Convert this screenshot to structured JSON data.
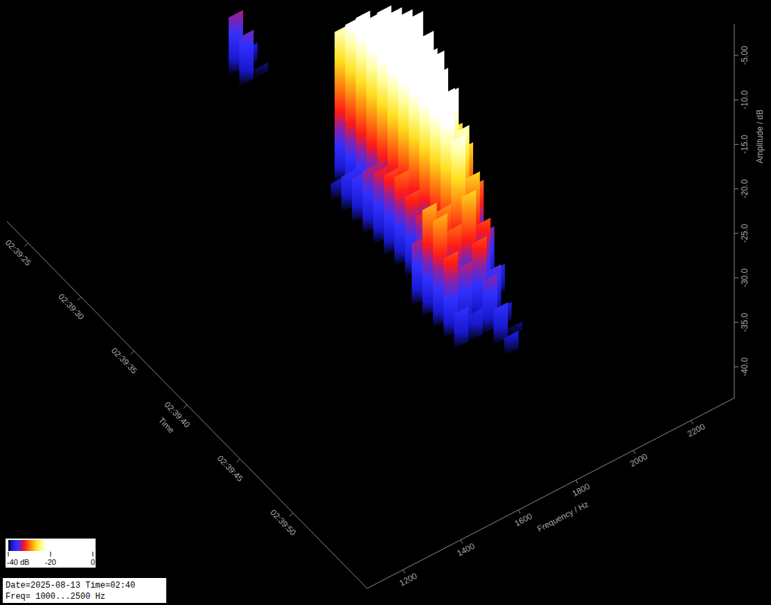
{
  "chart_data": {
    "type": "waterfall",
    "x_label": "Time",
    "y_label": "Frequency / Hz",
    "z_label": "Amplitude / dB",
    "x": [
      "02:39:23",
      "02:39:24",
      "02:39:33",
      "02:39:34",
      "02:39:35",
      "02:39:36",
      "02:39:37",
      "02:39:38",
      "02:39:39",
      "02:39:40",
      "02:39:41",
      "02:39:42",
      "02:39:43",
      "02:39:44",
      "02:39:45",
      "02:39:46",
      "02:39:47",
      "02:39:48",
      "02:39:49"
    ],
    "y": [
      1770,
      1820,
      1870,
      1920,
      1970
    ],
    "values": [
      [
        null,
        null,
        -33.5,
        -38,
        null
      ],
      [
        null,
        null,
        -34.5,
        -39,
        null
      ],
      [
        null,
        null,
        -23,
        -28,
        -35
      ],
      [
        null,
        -38,
        -21,
        -26,
        -33
      ],
      [
        null,
        -36,
        -19,
        -24,
        -31
      ],
      [
        null,
        -35,
        -18,
        -23,
        -30
      ],
      [
        null,
        -33,
        -16,
        -21,
        -28
      ],
      [
        null,
        -32,
        -15,
        -20,
        -27
      ],
      [
        null,
        -31,
        -14,
        -19,
        -26
      ],
      [
        null,
        -30,
        -13,
        -18,
        -25
      ],
      [
        null,
        -31,
        -14,
        -19,
        -26
      ],
      [
        null,
        -32,
        -15,
        -20,
        -27
      ],
      [
        -33,
        -31,
        -18,
        -23,
        -30
      ],
      [
        -28,
        -29,
        -22,
        -27,
        -34
      ],
      [
        -28,
        -30,
        -27,
        -31,
        -37
      ],
      [
        -31,
        -33,
        -31,
        -35,
        null
      ],
      [
        -36,
        -37,
        -34,
        -38,
        null
      ],
      [
        null,
        null,
        -36,
        -39,
        null
      ],
      [
        null,
        null,
        -38,
        null,
        null
      ]
    ],
    "xlim": [
      "02:39:23",
      "02:39:57"
    ],
    "xticks": [
      "02:39:25",
      "02:39:30",
      "02:39:35",
      "02:39:40",
      "02:39:45",
      "02:39:50"
    ],
    "ylim": [
      1075,
      2350
    ],
    "yticks": [
      1200,
      1400,
      1600,
      1800,
      2000,
      2200
    ],
    "zlim": [
      -43.5,
      -1.5
    ],
    "zticks": [
      {
        "value": -5,
        "label": "-5.00"
      },
      {
        "value": -10,
        "label": "-10.0"
      },
      {
        "value": -15,
        "label": "-15.0"
      },
      {
        "value": -20,
        "label": "-20.0"
      },
      {
        "value": -25,
        "label": "-25.0"
      },
      {
        "value": -30,
        "label": "-30.0"
      },
      {
        "value": -35,
        "label": "-35.0"
      },
      {
        "value": -40,
        "label": "-40.0"
      }
    ],
    "colorbar": {
      "range": [
        -40,
        0
      ],
      "ticks": [
        {
          "value": -40,
          "label": "-40 dB"
        },
        -20,
        0
      ]
    },
    "annotations": [
      "Date=2025-08-13 Time=02:40",
      "Freq= 1000...2500 Hz"
    ]
  }
}
